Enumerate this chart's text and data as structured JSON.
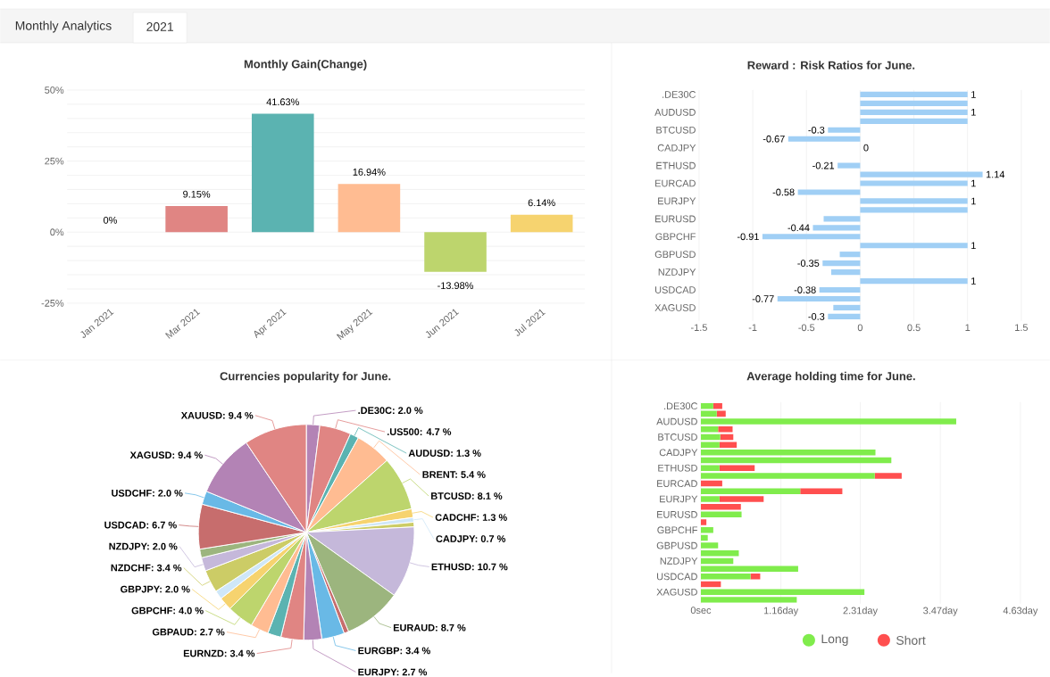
{
  "chart_data": [
    {
      "type": "bar",
      "title": "Monthly Gain(Change)",
      "annotations": [
        "Monthly Analytics",
        "2021"
      ],
      "categories": [
        "Jan 2021",
        "Mar 2021",
        "Apr 2021",
        "May 2021",
        "Jun 2021",
        "Jul 2021"
      ],
      "values": [
        0,
        9.15,
        41.63,
        16.94,
        -13.98,
        6.14
      ],
      "colors": [
        "#b383b5",
        "#e08583",
        "#5bb3b1",
        "#ffbc92",
        "#bdd56d",
        "#f6d36f"
      ],
      "value_labels": [
        "0%",
        "9.15%",
        "41.63%",
        "16.94%",
        "-13.98%",
        "6.14%"
      ],
      "ylim": [
        -25,
        50
      ],
      "yticks": [
        {
          "value": -25,
          "label": "-25%"
        },
        {
          "value": -20,
          "label": null
        },
        {
          "value": -15,
          "label": null
        },
        {
          "value": -10,
          "label": null
        },
        {
          "value": -5,
          "label": null
        },
        {
          "value": 0,
          "label": "0%"
        },
        {
          "value": 5,
          "label": null
        },
        {
          "value": 10,
          "label": null
        },
        {
          "value": 15,
          "label": null
        },
        {
          "value": 20,
          "label": null
        },
        {
          "value": 25,
          "label": "25%"
        },
        {
          "value": 30,
          "label": null
        },
        {
          "value": 35,
          "label": null
        },
        {
          "value": 40,
          "label": null
        },
        {
          "value": 45,
          "label": null
        },
        {
          "value": 50,
          "label": "50%"
        }
      ],
      "grid": "y"
    },
    {
      "type": "bar",
      "orientation": "horizontal",
      "title": "Reward : Risk Ratios for June.",
      "categories": [
        ".DE30C",
        null,
        "AUDUSD",
        null,
        "BTCUSD",
        null,
        "CADJPY",
        null,
        "ETHUSD",
        null,
        "EURCAD",
        null,
        "EURJPY",
        null,
        "EURUSD",
        null,
        "GBPCHF",
        null,
        "GBPUSD",
        null,
        "NZDJPY",
        null,
        "USDCAD",
        null,
        "XAGUSD",
        null
      ],
      "values": [
        1,
        1,
        1,
        1,
        -0.3,
        -0.67,
        0,
        null,
        -0.21,
        1.14,
        1,
        -0.58,
        1,
        1,
        -0.34,
        -0.44,
        -0.91,
        1,
        -0.19,
        -0.35,
        -0.27,
        1,
        -0.38,
        -0.77,
        -0.25,
        -0.3
      ],
      "value_labels": [
        "1",
        null,
        "1",
        null,
        "-0.3",
        "-0.67",
        "0",
        null,
        "-0.21",
        "1.14",
        "1",
        "-0.58",
        "1",
        null,
        null,
        "-0.44",
        "-0.91",
        "1",
        null,
        "-0.35",
        null,
        "1",
        "-0.38",
        "-0.77",
        null,
        "-0.3"
      ],
      "color": "#a0cff5",
      "xlim": [
        -1.5,
        1.5
      ],
      "xticks": [
        -1.5,
        -1,
        -0.5,
        0,
        0.5,
        1,
        1.5
      ],
      "grid": "x"
    },
    {
      "type": "pie",
      "title": "Currencies popularity for June.",
      "categories": [
        ".DE30C: 2.0 %",
        ".US500: 4.7 %",
        "AUDUSD: 1.3 %",
        "BRENT: 5.4 %",
        "BTCUSD: 8.1 %",
        "CADCHF: 1.3 %",
        "CADJPY: 0.7 %",
        null,
        "ETHUSD: 10.7 %",
        "EURAUD: 8.7 %",
        null,
        "EURGBP: 3.4 %",
        "EURJPY: 2.7 %",
        "EURNZD: 3.4 %",
        null,
        "GBPAUD: 2.7 %",
        "GBPCHF: 4.0 %",
        "GBPJPY: 2.0 %",
        null,
        "NZDCHF: 3.4 %",
        "NZDJPY: 2.0 %",
        null,
        "USDCAD: 6.7 %",
        "USDCHF: 2.0 %",
        "XAGUSD: 9.4 %",
        "XAUUSD: 9.4 %"
      ],
      "values": [
        2.0,
        4.7,
        1.3,
        5.4,
        8.1,
        1.3,
        0.7,
        0.7,
        10.7,
        8.7,
        0.7,
        3.4,
        2.7,
        3.4,
        2.0,
        2.7,
        4.0,
        2.0,
        1.3,
        3.4,
        2.0,
        1.3,
        6.7,
        2.0,
        9.4,
        9.4
      ],
      "colors": [
        "#b383b5",
        "#e08583",
        "#5bb3b1",
        "#ffbc92",
        "#bdd56d",
        "#f6d36f",
        "#cfe7f8",
        "#cccc66",
        "#c5b8da",
        "#9cb57e",
        "#c76d6d",
        "#69b9e6",
        "#b383b5",
        "#e08583",
        "#5bb3b1",
        "#ffbc92",
        "#bdd56d",
        "#f6d36f",
        "#cfe7f8",
        "#cccc66",
        "#c5b8da",
        "#9cb57e",
        "#c76d6d",
        "#69b9e6",
        "#b383b5",
        "#e08583"
      ]
    },
    {
      "type": "bar",
      "orientation": "horizontal",
      "stacked": true,
      "title": "Average holding time for June.",
      "categories": [
        ".DE30C",
        null,
        "AUDUSD",
        null,
        "BTCUSD",
        null,
        "CADJPY",
        null,
        "ETHUSD",
        null,
        "EURCAD",
        null,
        "EURJPY",
        null,
        "EURUSD",
        null,
        "GBPCHF",
        null,
        "GBPUSD",
        null,
        "NZDJPY",
        null,
        "USDCAD",
        null,
        "XAGUSD",
        null
      ],
      "series": [
        {
          "name": "Long",
          "color": "#80ec4c",
          "values": [
            0.18,
            0.23,
            3.7,
            0.25,
            0.28,
            0.27,
            2.53,
            2.76,
            0.27,
            2.52,
            0,
            1.44,
            0.27,
            0,
            0.59,
            0,
            0.18,
            0.1,
            0.25,
            0.55,
            0.47,
            1.41,
            0.72,
            0,
            2.37,
            1.39
          ]
        },
        {
          "name": "Short",
          "color": "#ff4f4f",
          "values": [
            0.13,
            0.13,
            0,
            0.21,
            0.19,
            0.25,
            0,
            0,
            0.51,
            0.39,
            0.31,
            0.61,
            0.64,
            0.58,
            0,
            0.08,
            0,
            0,
            0,
            0,
            0,
            0,
            0.14,
            0.29,
            0,
            0
          ]
        }
      ],
      "xlim": [
        0,
        4.63
      ],
      "xticks": [
        {
          "value": 0,
          "label": "0sec"
        },
        {
          "value": 1.16,
          "label": "1.16day"
        },
        {
          "value": 2.31,
          "label": "2.31day"
        },
        {
          "value": 3.47,
          "label": "3.47day"
        },
        {
          "value": 4.63,
          "label": "4.63day"
        }
      ],
      "grid": "x",
      "legend": "bottom"
    }
  ]
}
